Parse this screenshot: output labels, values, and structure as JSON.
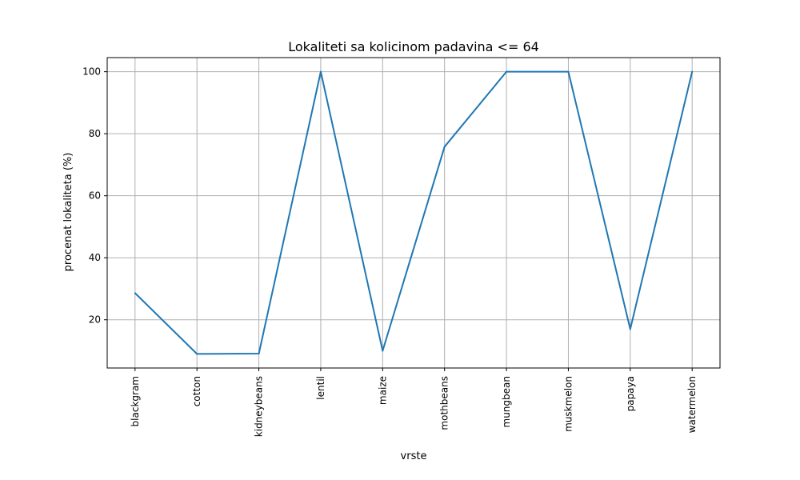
{
  "chart_data": {
    "type": "line",
    "title": "Lokaliteti sa kolicinom padavina <= 64",
    "xlabel": "vrste",
    "ylabel": "procenat lokaliteta (%)",
    "categories": [
      "blackgram",
      "cotton",
      "kidneybeans",
      "lentil",
      "maize",
      "mothbeans",
      "mungbean",
      "muskmelon",
      "papaya",
      "watermelon"
    ],
    "values": [
      28.6,
      9.0,
      9.1,
      100,
      10.0,
      75.8,
      100,
      100,
      17.0,
      100
    ],
    "yticks": [
      20,
      40,
      60,
      80,
      100
    ],
    "ylim": [
      4.45,
      104.55
    ],
    "grid": true,
    "colors": {
      "line": "#1f77b4"
    }
  }
}
